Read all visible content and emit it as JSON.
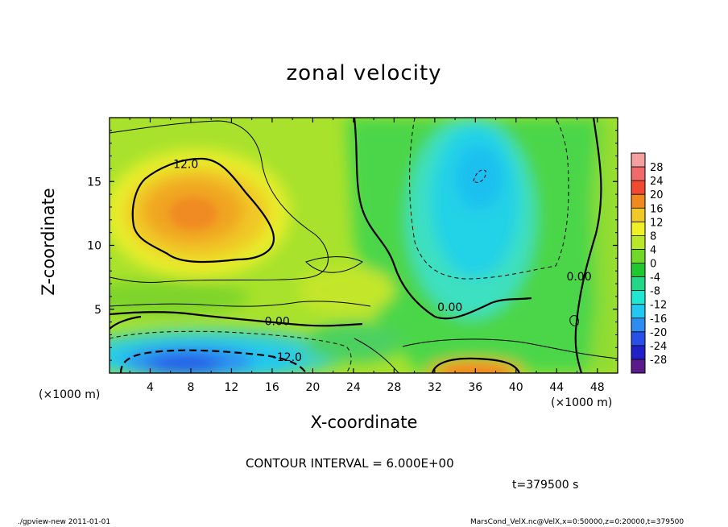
{
  "chart_data": {
    "type": "contour",
    "title": "zonal velocity",
    "xlabel": "X-coordinate",
    "ylabel": "Z-coordinate",
    "x_unit_label": "(×1000 m)",
    "y_unit_label": "(×1000 m)",
    "xlim": [
      0,
      50
    ],
    "ylim": [
      0,
      20
    ],
    "x_ticks": [
      4,
      8,
      12,
      16,
      20,
      24,
      28,
      32,
      36,
      40,
      44,
      48
    ],
    "y_ticks": [
      5,
      10,
      15
    ],
    "contour_interval_text": "CONTOUR INTERVAL = 6.000E+00",
    "time_text": "t=379500 s",
    "colorbar": {
      "levels": [
        -28,
        -24,
        -20,
        -16,
        -12,
        -8,
        -4,
        0,
        4,
        8,
        12,
        16,
        20,
        24,
        28
      ],
      "colors": [
        "#5a1a8c",
        "#2020c8",
        "#2850e8",
        "#2d8cf0",
        "#22c8f0",
        "#20e8d0",
        "#22d888",
        "#20c830",
        "#70d828",
        "#b8e828",
        "#f0f028",
        "#f0c828",
        "#f08a20",
        "#f04a30",
        "#f06a6a",
        "#f5a0a0"
      ]
    },
    "contour_labels": [
      {
        "text": "12.0",
        "x": 7.5,
        "z": 16.3
      },
      {
        "text": "0.00",
        "x": 16.5,
        "z": 4.0
      },
      {
        "text": "-12.0",
        "x": 17.5,
        "z": 1.2
      },
      {
        "text": "0.00",
        "x": 33.5,
        "z": 5.1
      },
      {
        "text": "0.00",
        "x": 46.2,
        "z": 7.5
      }
    ],
    "features": [
      {
        "name": "positive-max-upper-left",
        "x": 8.5,
        "z": 12.5,
        "value": 18
      },
      {
        "name": "negative-min-lower-left",
        "x": 8.0,
        "z": 1.0,
        "value": -18
      },
      {
        "name": "negative-region-upper-center",
        "x": 35.0,
        "z": 14.0,
        "value": -10
      },
      {
        "name": "positive-max-bottom-center",
        "x": 36.0,
        "z": 0.5,
        "value": 16
      }
    ]
  },
  "footer": {
    "left": "./gpview-new  2011-01-01",
    "right": "MarsCond_VelX.nc@VelX,x=0:50000,z=0:20000,t=379500"
  }
}
